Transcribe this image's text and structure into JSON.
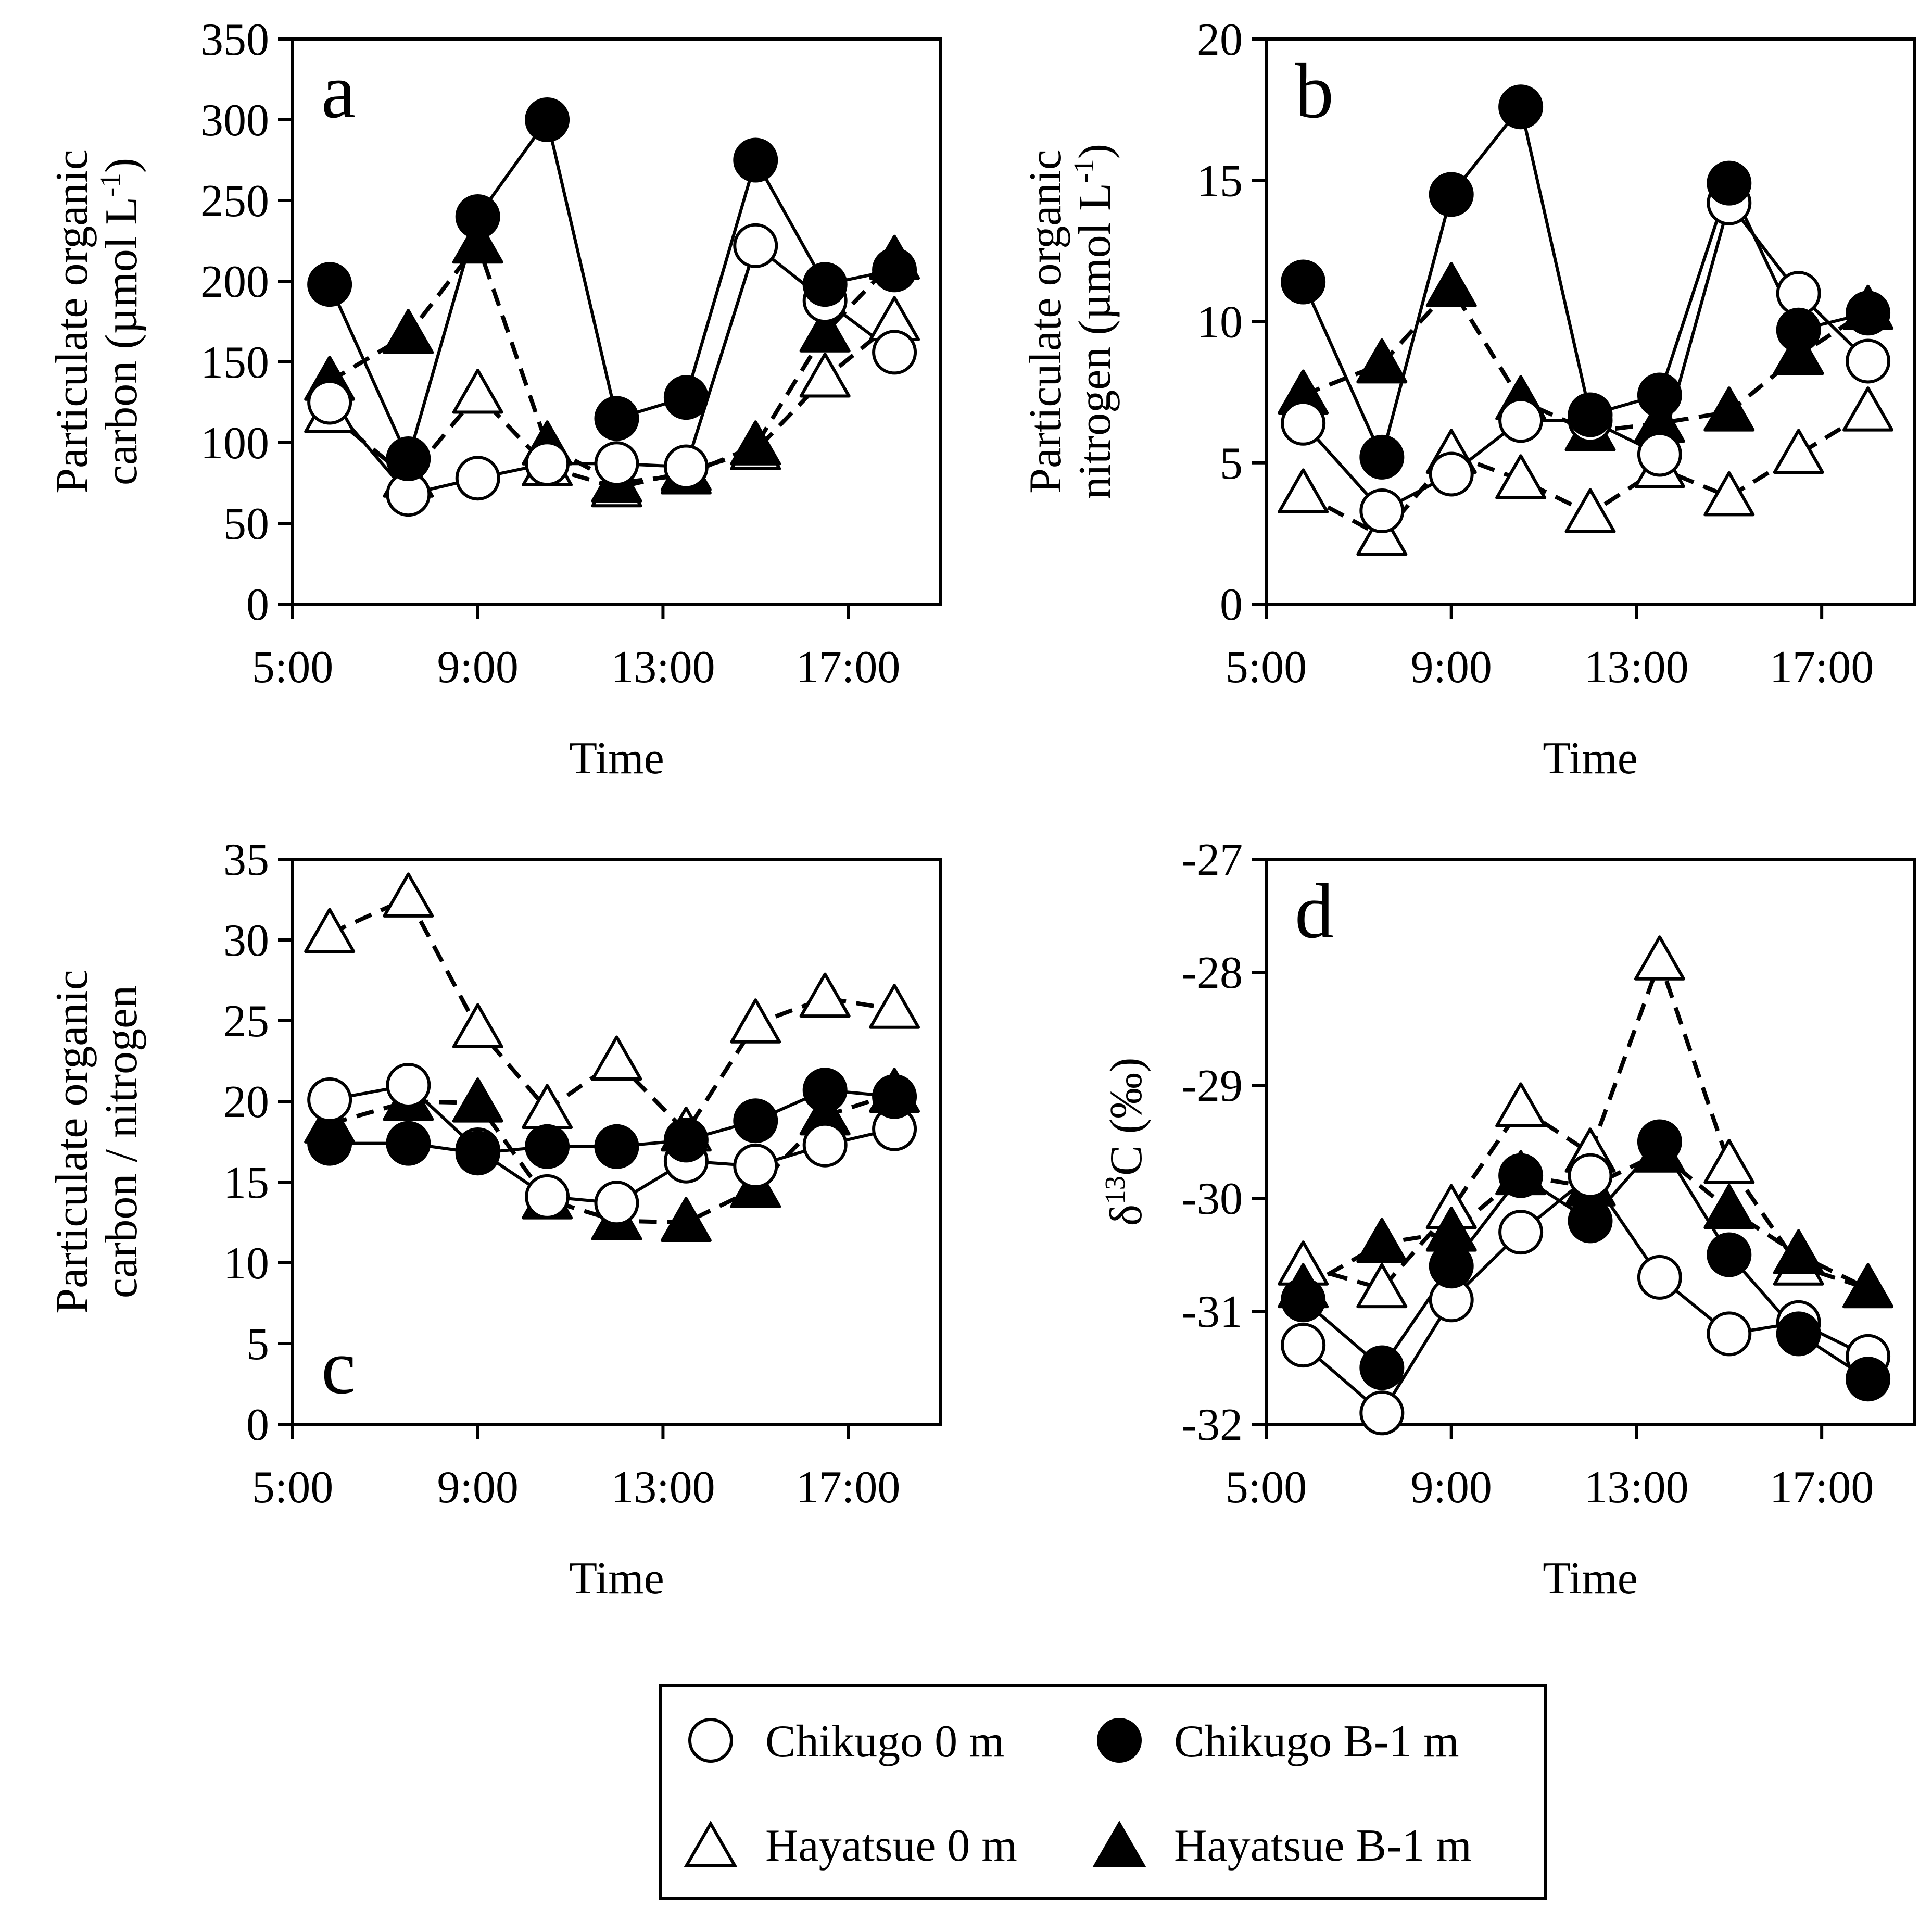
{
  "legend": {
    "entries": [
      {
        "key": "chikugo_0",
        "label": "Chikugo 0 m"
      },
      {
        "key": "chikugo_b1",
        "label": "Chikugo B-1 m"
      },
      {
        "key": "hayatsue_0",
        "label": "Hayatsue 0 m"
      },
      {
        "key": "hayatsue_b1",
        "label": "Hayatsue B-1 m"
      }
    ]
  },
  "series_styles": {
    "chikugo_0": {
      "marker": "circle",
      "filled": false,
      "dashed": false
    },
    "chikugo_b1": {
      "marker": "circle",
      "filled": true,
      "dashed": false
    },
    "hayatsue_0": {
      "marker": "triangle",
      "filled": false,
      "dashed": true
    },
    "hayatsue_b1": {
      "marker": "triangle",
      "filled": true,
      "dashed": true
    }
  },
  "colors": {
    "ink": "#000000",
    "background": "#ffffff",
    "hollow_fill": "#ffffff"
  },
  "chart_data": [
    {
      "id": "a",
      "type": "line",
      "panel_letter": "a",
      "xlabel": "Time",
      "ylabel_lines": [
        "Particulate organic",
        "carbon (µmol L",
        "-1",
        ")"
      ],
      "xlim": [
        5,
        19
      ],
      "ylim": [
        0,
        350
      ],
      "xticks": [
        5,
        9,
        13,
        17
      ],
      "xtick_labels": [
        "5:00",
        "9:00",
        "13:00",
        "17:00"
      ],
      "yticks": [
        0,
        50,
        100,
        150,
        200,
        250,
        300,
        350
      ],
      "ytick_labels": [
        "0",
        "50",
        "100",
        "150",
        "200",
        "250",
        "300",
        "350"
      ],
      "x": [
        5.8,
        7.5,
        9.0,
        10.5,
        12.0,
        13.5,
        15.0,
        16.5,
        18.0
      ],
      "series": [
        {
          "key": "chikugo_0",
          "name": "Chikugo 0 m",
          "values": [
            125,
            68,
            78,
            87,
            87,
            85,
            222,
            188,
            156
          ]
        },
        {
          "key": "chikugo_b1",
          "name": "Chikugo B-1 m",
          "values": [
            198,
            90,
            240,
            300,
            115,
            128,
            275,
            198,
            207
          ]
        },
        {
          "key": "hayatsue_0",
          "name": "Hayatsue 0 m",
          "values": [
            118,
            78,
            130,
            85,
            72,
            82,
            95,
            140,
            175
          ]
        },
        {
          "key": "hayatsue_b1",
          "name": "Hayatsue B-1 m",
          "values": [
            138,
            167,
            223,
            98,
            75,
            80,
            98,
            168,
            213
          ]
        }
      ]
    },
    {
      "id": "b",
      "type": "line",
      "panel_letter": "b",
      "xlabel": "Time",
      "ylabel_lines": [
        "Particulate organic",
        "nitrogen (µmol L",
        "-1",
        ")"
      ],
      "xlim": [
        5,
        19
      ],
      "ylim": [
        0,
        20
      ],
      "xticks": [
        5,
        9,
        13,
        17
      ],
      "xtick_labels": [
        "5:00",
        "9:00",
        "13:00",
        "17:00"
      ],
      "yticks": [
        0,
        5,
        10,
        15,
        20
      ],
      "ytick_labels": [
        "0",
        "5",
        "10",
        "15",
        "20"
      ],
      "x": [
        5.8,
        7.5,
        9.0,
        10.5,
        12.0,
        13.5,
        15.0,
        16.5,
        18.0
      ],
      "series": [
        {
          "key": "chikugo_0",
          "name": "Chikugo 0 m",
          "values": [
            6.4,
            3.3,
            4.6,
            6.5,
            6.5,
            5.3,
            14.2,
            11.0,
            8.6
          ]
        },
        {
          "key": "chikugo_b1",
          "name": "Chikugo B-1 m",
          "values": [
            11.4,
            5.2,
            14.5,
            17.6,
            6.7,
            7.4,
            14.9,
            9.7,
            10.3
          ]
        },
        {
          "key": "hayatsue_0",
          "name": "Hayatsue 0 m",
          "values": [
            3.9,
            2.4,
            5.3,
            4.4,
            3.2,
            4.8,
            3.8,
            5.3,
            6.8
          ]
        },
        {
          "key": "hayatsue_b1",
          "name": "Hayatsue B-1 m",
          "values": [
            7.4,
            8.5,
            11.2,
            7.2,
            6.1,
            6.4,
            6.8,
            8.8,
            10.4
          ]
        }
      ]
    },
    {
      "id": "c",
      "type": "line",
      "panel_letter": "c",
      "xlabel": "Time",
      "ylabel_lines": [
        "Particulate organic",
        "carbon / nitrogen"
      ],
      "xlim": [
        5,
        19
      ],
      "ylim": [
        0,
        35
      ],
      "xticks": [
        5,
        9,
        13,
        17
      ],
      "xtick_labels": [
        "5:00",
        "9:00",
        "13:00",
        "17:00"
      ],
      "yticks": [
        0,
        5,
        10,
        15,
        20,
        25,
        30,
        35
      ],
      "ytick_labels": [
        "0",
        "5",
        "10",
        "15",
        "20",
        "25",
        "30",
        "35"
      ],
      "x": [
        5.8,
        7.5,
        9.0,
        10.5,
        12.0,
        13.5,
        15.0,
        16.5,
        18.0
      ],
      "series": [
        {
          "key": "chikugo_0",
          "name": "Chikugo 0 m",
          "values": [
            20.1,
            21.0,
            17.0,
            14.1,
            13.7,
            16.3,
            16.0,
            17.3,
            18.3
          ]
        },
        {
          "key": "chikugo_b1",
          "name": "Chikugo B-1 m",
          "values": [
            17.4,
            17.4,
            16.8,
            17.2,
            17.2,
            17.6,
            18.8,
            20.7,
            20.3
          ]
        },
        {
          "key": "hayatsue_0",
          "name": "Hayatsue 0 m",
          "values": [
            30.4,
            32.6,
            24.5,
            19.5,
            22.5,
            18.1,
            24.8,
            26.4,
            25.7
          ]
        },
        {
          "key": "hayatsue_b1",
          "name": "Hayatsue B-1 m",
          "values": [
            18.6,
            20.0,
            19.9,
            13.9,
            12.6,
            12.5,
            14.6,
            19.1,
            20.5
          ]
        }
      ]
    },
    {
      "id": "d",
      "type": "line",
      "panel_letter": "d",
      "xlabel": "Time",
      "ylabel_lines": [
        "δ",
        "13",
        "C (‰)"
      ],
      "xlim": [
        5,
        19
      ],
      "ylim": [
        -32,
        -27
      ],
      "xticks": [
        5,
        9,
        13,
        17
      ],
      "xtick_labels": [
        "5:00",
        "9:00",
        "13:00",
        "17:00"
      ],
      "yticks": [
        -32,
        -31,
        -30,
        -29,
        -28,
        -27
      ],
      "ytick_labels": [
        "-32",
        "-31",
        "-30",
        "-29",
        "-28",
        "-27"
      ],
      "x": [
        5.8,
        7.5,
        9.0,
        10.5,
        12.0,
        13.5,
        15.0,
        16.5,
        18.0
      ],
      "series": [
        {
          "key": "chikugo_0",
          "name": "Chikugo 0 m",
          "values": [
            -31.3,
            -31.9,
            -30.9,
            -30.3,
            -29.8,
            -30.7,
            -31.2,
            -31.1,
            -31.4
          ]
        },
        {
          "key": "chikugo_b1",
          "name": "Chikugo B-1 m",
          "values": [
            -30.9,
            -31.5,
            -30.6,
            -29.8,
            -30.2,
            -29.5,
            -30.5,
            -31.2,
            -31.6
          ]
        },
        {
          "key": "hayatsue_0",
          "name": "Hayatsue 0 m",
          "values": [
            -30.6,
            -30.8,
            -30.1,
            -29.2,
            -29.6,
            -27.9,
            -29.7,
            -30.6,
            -30.8
          ]
        },
        {
          "key": "hayatsue_b1",
          "name": "Hayatsue B-1 m",
          "values": [
            -30.8,
            -30.4,
            -30.3,
            -29.8,
            -29.9,
            -29.6,
            -30.1,
            -30.5,
            -30.8
          ]
        }
      ]
    }
  ]
}
